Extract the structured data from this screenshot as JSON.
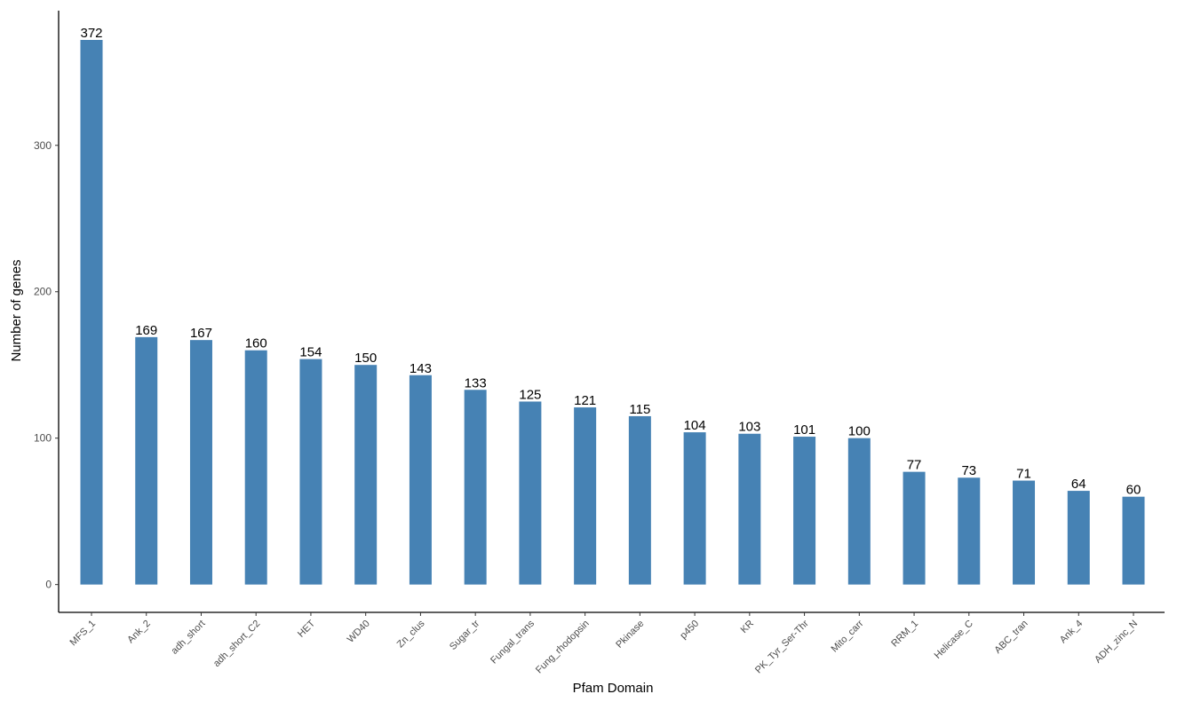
{
  "chart_data": {
    "type": "bar",
    "xlabel": "Pfam Domain",
    "ylabel": "Number of genes",
    "categories": [
      "MFS_1",
      "Ank_2",
      "adh_short",
      "adh_short_C2",
      "HET",
      "WD40",
      "Zn_clus",
      "Sugar_tr",
      "Fungal_trans",
      "Fung_rhodopsin",
      "Pkinase",
      "p450",
      "KR",
      "PK_Tyr_Ser-Thr",
      "Mito_carr",
      "RRM_1",
      "Helicase_C",
      "ABC_tran",
      "Ank_4",
      "ADH_zinc_N"
    ],
    "values": [
      372,
      169,
      167,
      160,
      154,
      150,
      143,
      133,
      125,
      121,
      115,
      104,
      103,
      101,
      100,
      77,
      73,
      71,
      64,
      60
    ],
    "data_labels": [
      "372",
      "169",
      "167",
      "160",
      "154",
      "150",
      "143",
      "133",
      "125",
      "121",
      "115",
      "104",
      "103",
      "101",
      "100",
      "77",
      "73",
      "71",
      "64",
      "60"
    ],
    "yticks": [
      0,
      100,
      200,
      300
    ],
    "ytick_labels": [
      "0",
      "100",
      "200",
      "300"
    ],
    "ylim": [
      -19,
      392
    ],
    "bar_color": "#4682B4",
    "grid": false
  }
}
